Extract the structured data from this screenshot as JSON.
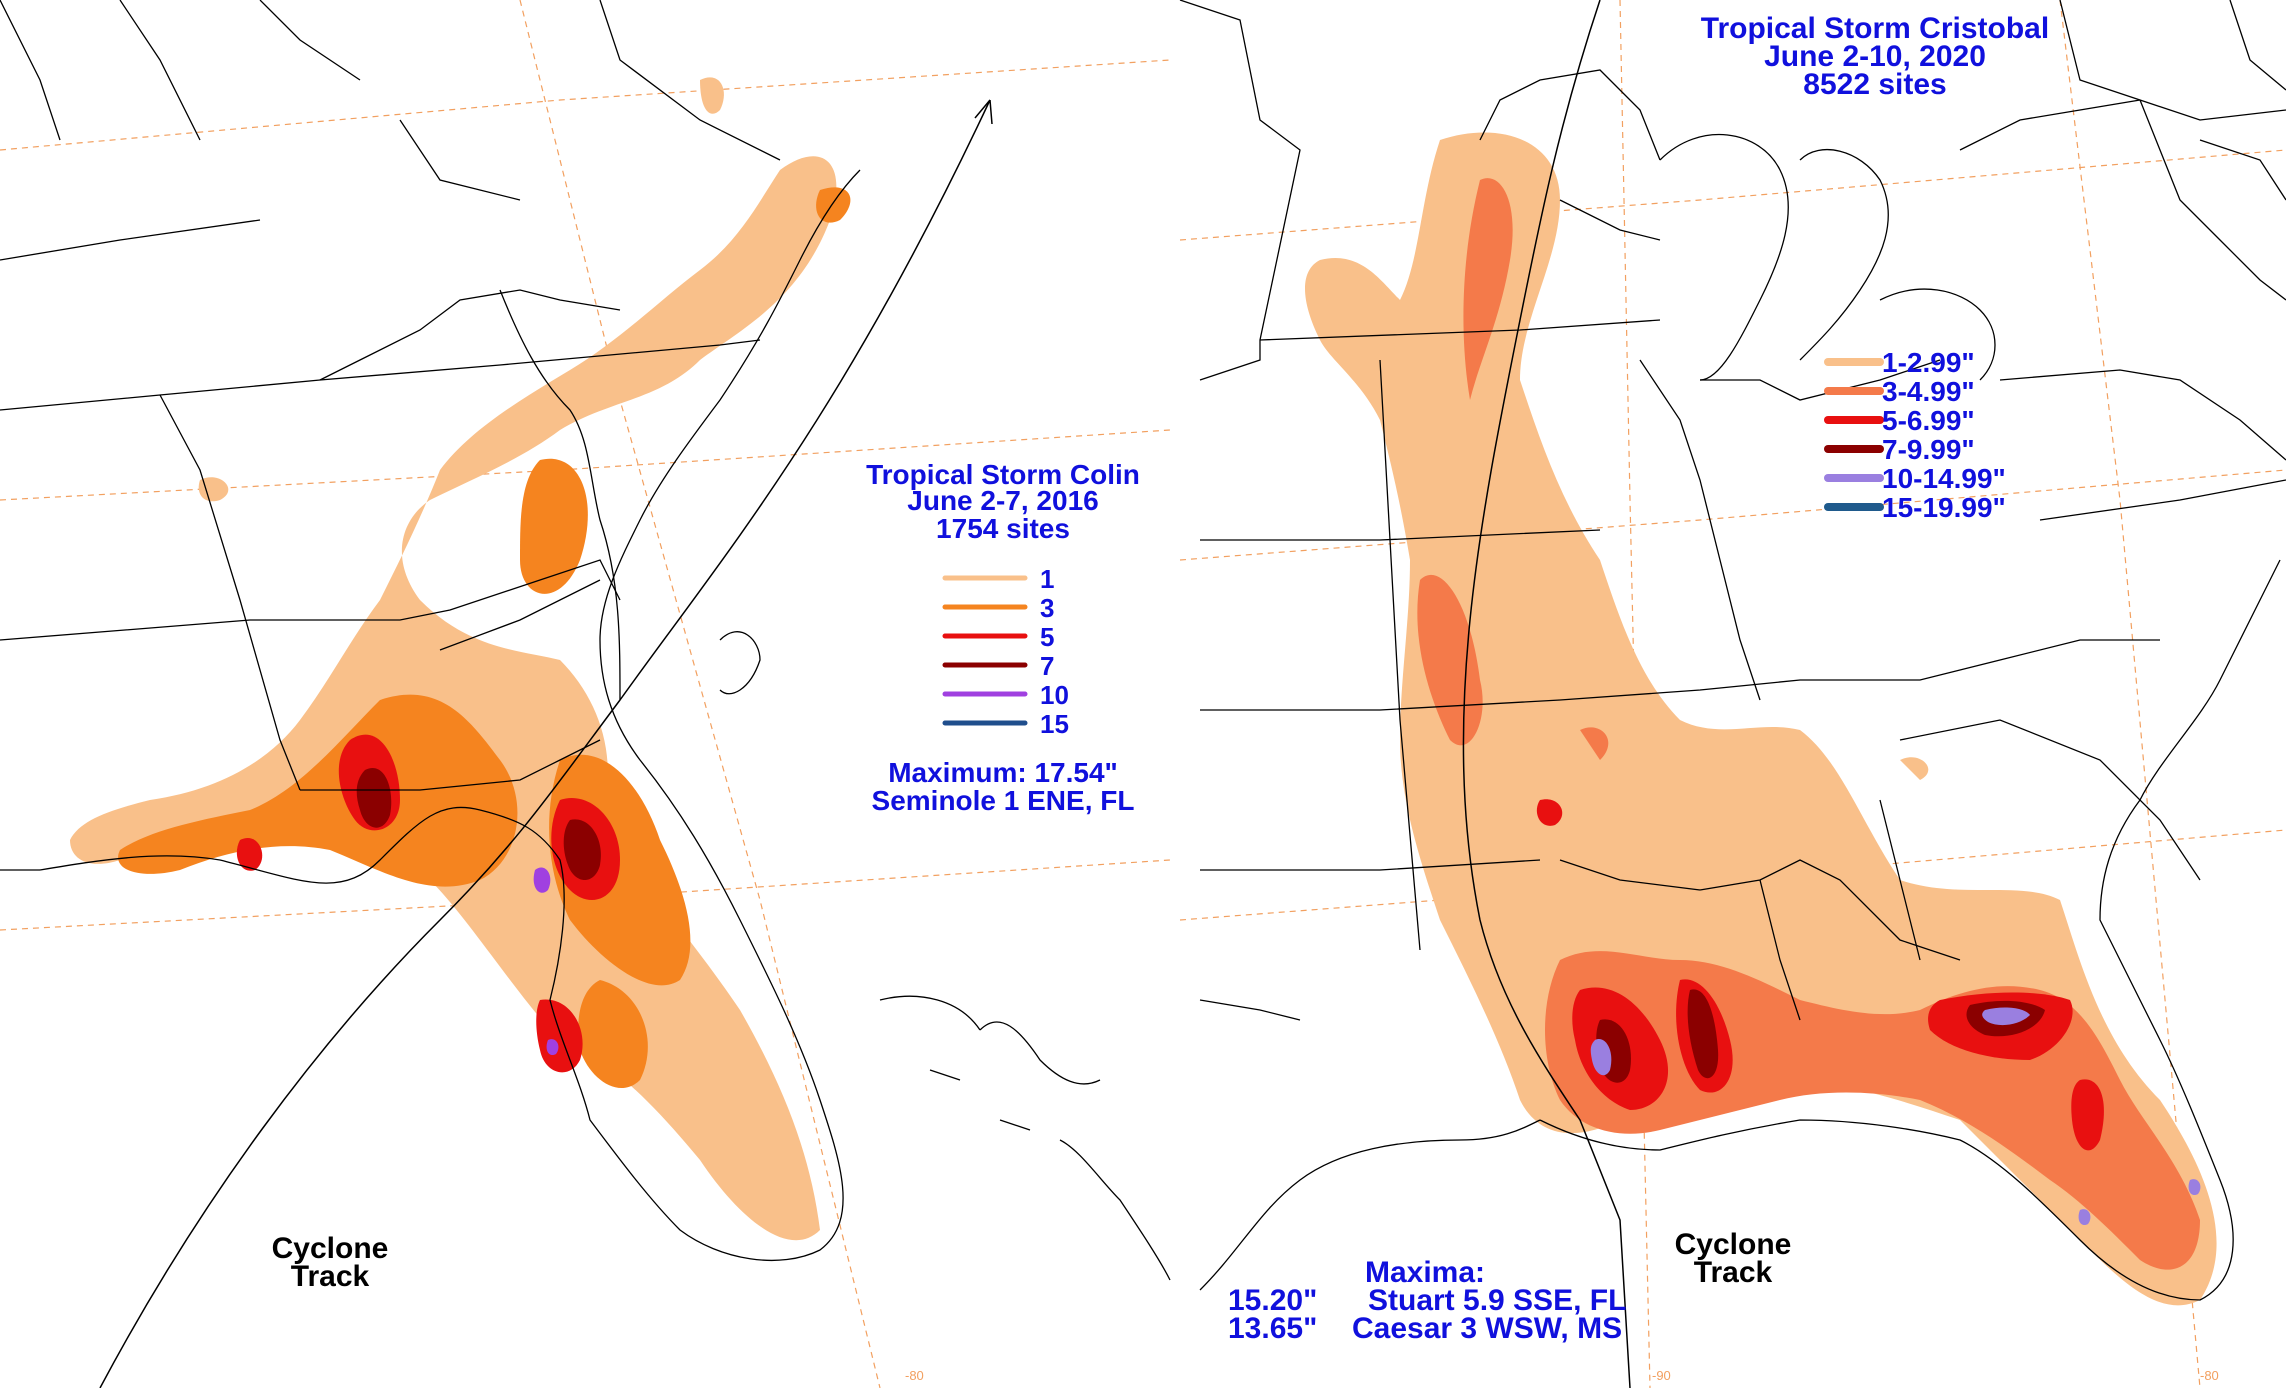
{
  "left_map": {
    "title": "Tropical Storm Colin",
    "dates": "June 2-7, 2016",
    "sites": "1754 sites",
    "legend": [
      {
        "label": "1",
        "color": "#f9c08a"
      },
      {
        "label": "3",
        "color": "#f5841f"
      },
      {
        "label": "5",
        "color": "#e81010"
      },
      {
        "label": "7",
        "color": "#8b0000"
      },
      {
        "label": "10",
        "color": "#a040e0"
      },
      {
        "label": "15",
        "color": "#1f4e8c"
      }
    ],
    "maximum_line": "Maximum:  17.54\"",
    "maximum_location": "Seminole 1 ENE, FL",
    "track_label_1": "Cyclone",
    "track_label_2": "Track",
    "tick_label": "-80"
  },
  "right_map": {
    "title": "Tropical Storm Cristobal",
    "dates": "June 2-10, 2020",
    "sites": "8522 sites",
    "legend": [
      {
        "label": "1-2.99\"",
        "color": "#f9c08a"
      },
      {
        "label": "3-4.99\"",
        "color": "#f47a4a"
      },
      {
        "label": "5-6.99\"",
        "color": "#e81010"
      },
      {
        "label": "7-9.99\"",
        "color": "#8b0000"
      },
      {
        "label": "10-14.99\"",
        "color": "#9a7fe0"
      },
      {
        "label": "15-19.99\"",
        "color": "#1f5a8c"
      }
    ],
    "maxima_title": "Maxima:",
    "maxima": [
      {
        "value": "15.20\"",
        "location": "Stuart 5.9 SSE, FL"
      },
      {
        "value": "13.65\"",
        "location": "Caesar 3 WSW, MS"
      }
    ],
    "track_label_1": "Cyclone",
    "track_label_2": "Track",
    "tick_label": "-90",
    "tick_label_2": "-80"
  }
}
